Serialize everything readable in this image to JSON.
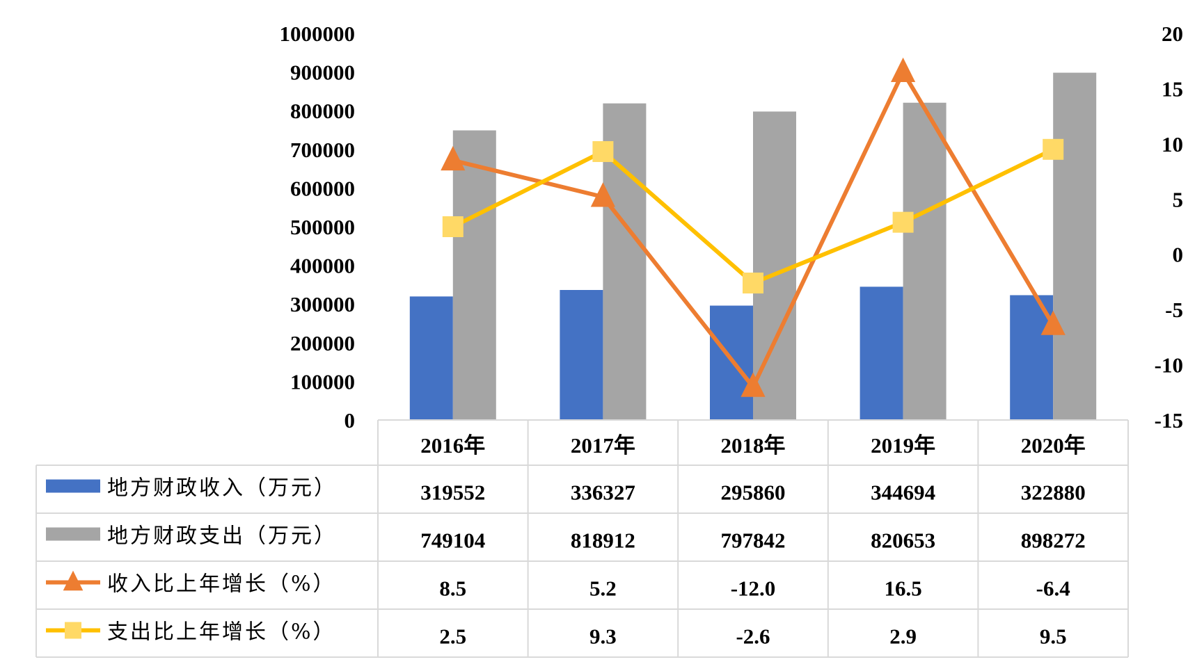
{
  "chart_data": {
    "type": "bar",
    "categories": [
      "2016年",
      "2017年",
      "2018年",
      "2019年",
      "2020年"
    ],
    "left_axis": {
      "min": 0,
      "max": 1000000,
      "step": 100000,
      "ticks": [
        "0",
        "100000",
        "200000",
        "300000",
        "400000",
        "500000",
        "600000",
        "700000",
        "800000",
        "900000",
        "1000000"
      ]
    },
    "right_axis": {
      "min": -15,
      "max": 20,
      "step": 5,
      "ticks": [
        "-15",
        "-10",
        "-5",
        "0",
        "5",
        "10",
        "15",
        "20"
      ]
    },
    "series": [
      {
        "name": "地方财政收入（万元）",
        "kind": "bar",
        "axis": "left",
        "color": "#4472c4",
        "values": [
          319552,
          336327,
          295860,
          344694,
          322880
        ],
        "labels": [
          "319552",
          "336327",
          "295860",
          "344694",
          "322880"
        ]
      },
      {
        "name": "地方财政支出（万元）",
        "kind": "bar",
        "axis": "left",
        "color": "#a5a5a5",
        "values": [
          749104,
          818912,
          797842,
          820653,
          898272
        ],
        "labels": [
          "749104",
          "818912",
          "797842",
          "820653",
          "898272"
        ]
      },
      {
        "name": "收入比上年增长（%）",
        "kind": "line",
        "axis": "right",
        "color": "#ed7d31",
        "marker": "triangle",
        "values": [
          8.5,
          5.2,
          -12.0,
          16.5,
          -6.4
        ],
        "labels": [
          "8.5",
          "5.2",
          "-12.0",
          "16.5",
          "-6.4"
        ]
      },
      {
        "name": "支出比上年增长（%）",
        "kind": "line",
        "axis": "right",
        "color": "#ffc000",
        "marker": "square",
        "marker_color": "#ffd966",
        "values": [
          2.5,
          9.3,
          -2.6,
          2.9,
          9.5
        ],
        "labels": [
          "2.5",
          "9.3",
          "-2.6",
          "2.9",
          "9.5"
        ]
      }
    ],
    "grid": false,
    "legend": "data-table"
  }
}
